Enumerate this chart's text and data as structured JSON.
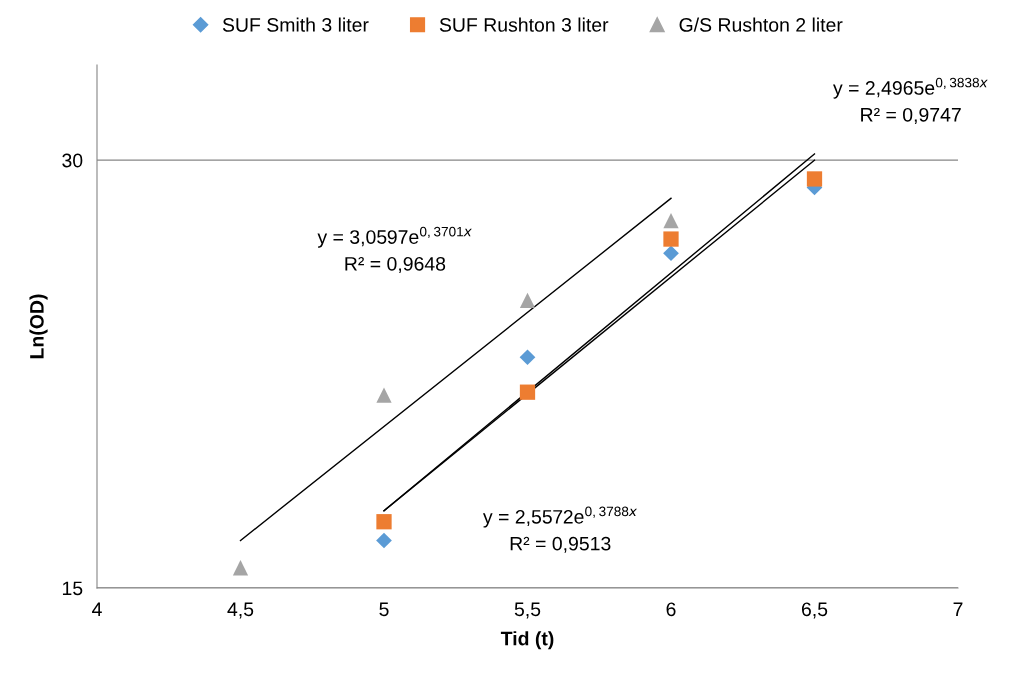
{
  "chart_data": {
    "type": "scatter",
    "xlabel": "Tid (t)",
    "ylabel": "Ln(OD)",
    "log": "y",
    "xlim": [
      4,
      7
    ],
    "xticks": [
      4,
      {
        "value": 4.5,
        "label": "4,5"
      },
      5,
      {
        "value": 5.5,
        "label": "5,5"
      },
      6,
      {
        "value": 6.5,
        "label": "6,5"
      },
      7
    ],
    "ylim": [
      15,
      35
    ],
    "yticks": [
      15,
      30
    ],
    "grid": "y",
    "legend": "top",
    "series": [
      {
        "name": "SUF Smith 3 liter",
        "color": "#5b9bd5",
        "marker": "diamond",
        "x": [
          5,
          5.5,
          6,
          6.5
        ],
        "values": [
          16.2,
          21.8,
          25.8,
          28.7
        ]
      },
      {
        "name": "SUF Rushton 3 liter",
        "color": "#ed7d31",
        "marker": "square",
        "x": [
          5,
          5.5,
          6,
          6.5
        ],
        "values": [
          16.7,
          20.6,
          26.4,
          29.1
        ]
      },
      {
        "name": "G/S Rushton 2 liter",
        "color": "#a5a5a5",
        "marker": "triangle",
        "x": [
          4.5,
          5,
          5.5,
          6
        ],
        "values": [
          15.5,
          20.5,
          23.9,
          27.2
        ]
      },
      {
        "type": "line",
        "color": "#000000",
        "marker": "none",
        "x": [
          4.5,
          6
        ],
        "values": [
          16.2,
          28.2
        ]
      },
      {
        "type": "line",
        "color": "#000000",
        "marker": "none",
        "x": [
          5,
          6.5
        ],
        "values": [
          17.0,
          30.0
        ]
      },
      {
        "type": "line",
        "color": "#000000",
        "marker": "none",
        "x": [
          5,
          6.5
        ],
        "values": [
          17.0,
          30.3
        ]
      }
    ],
    "annotations": [
      "y = 2,4965e$^{0,3838x}$\nR² = 0,9747",
      "y = 3,0597e$^{0,3701x}$\nR² = 0,9648",
      "y = 2,5572e$^{0,3788x}$\nR² = 0,9513"
    ]
  }
}
